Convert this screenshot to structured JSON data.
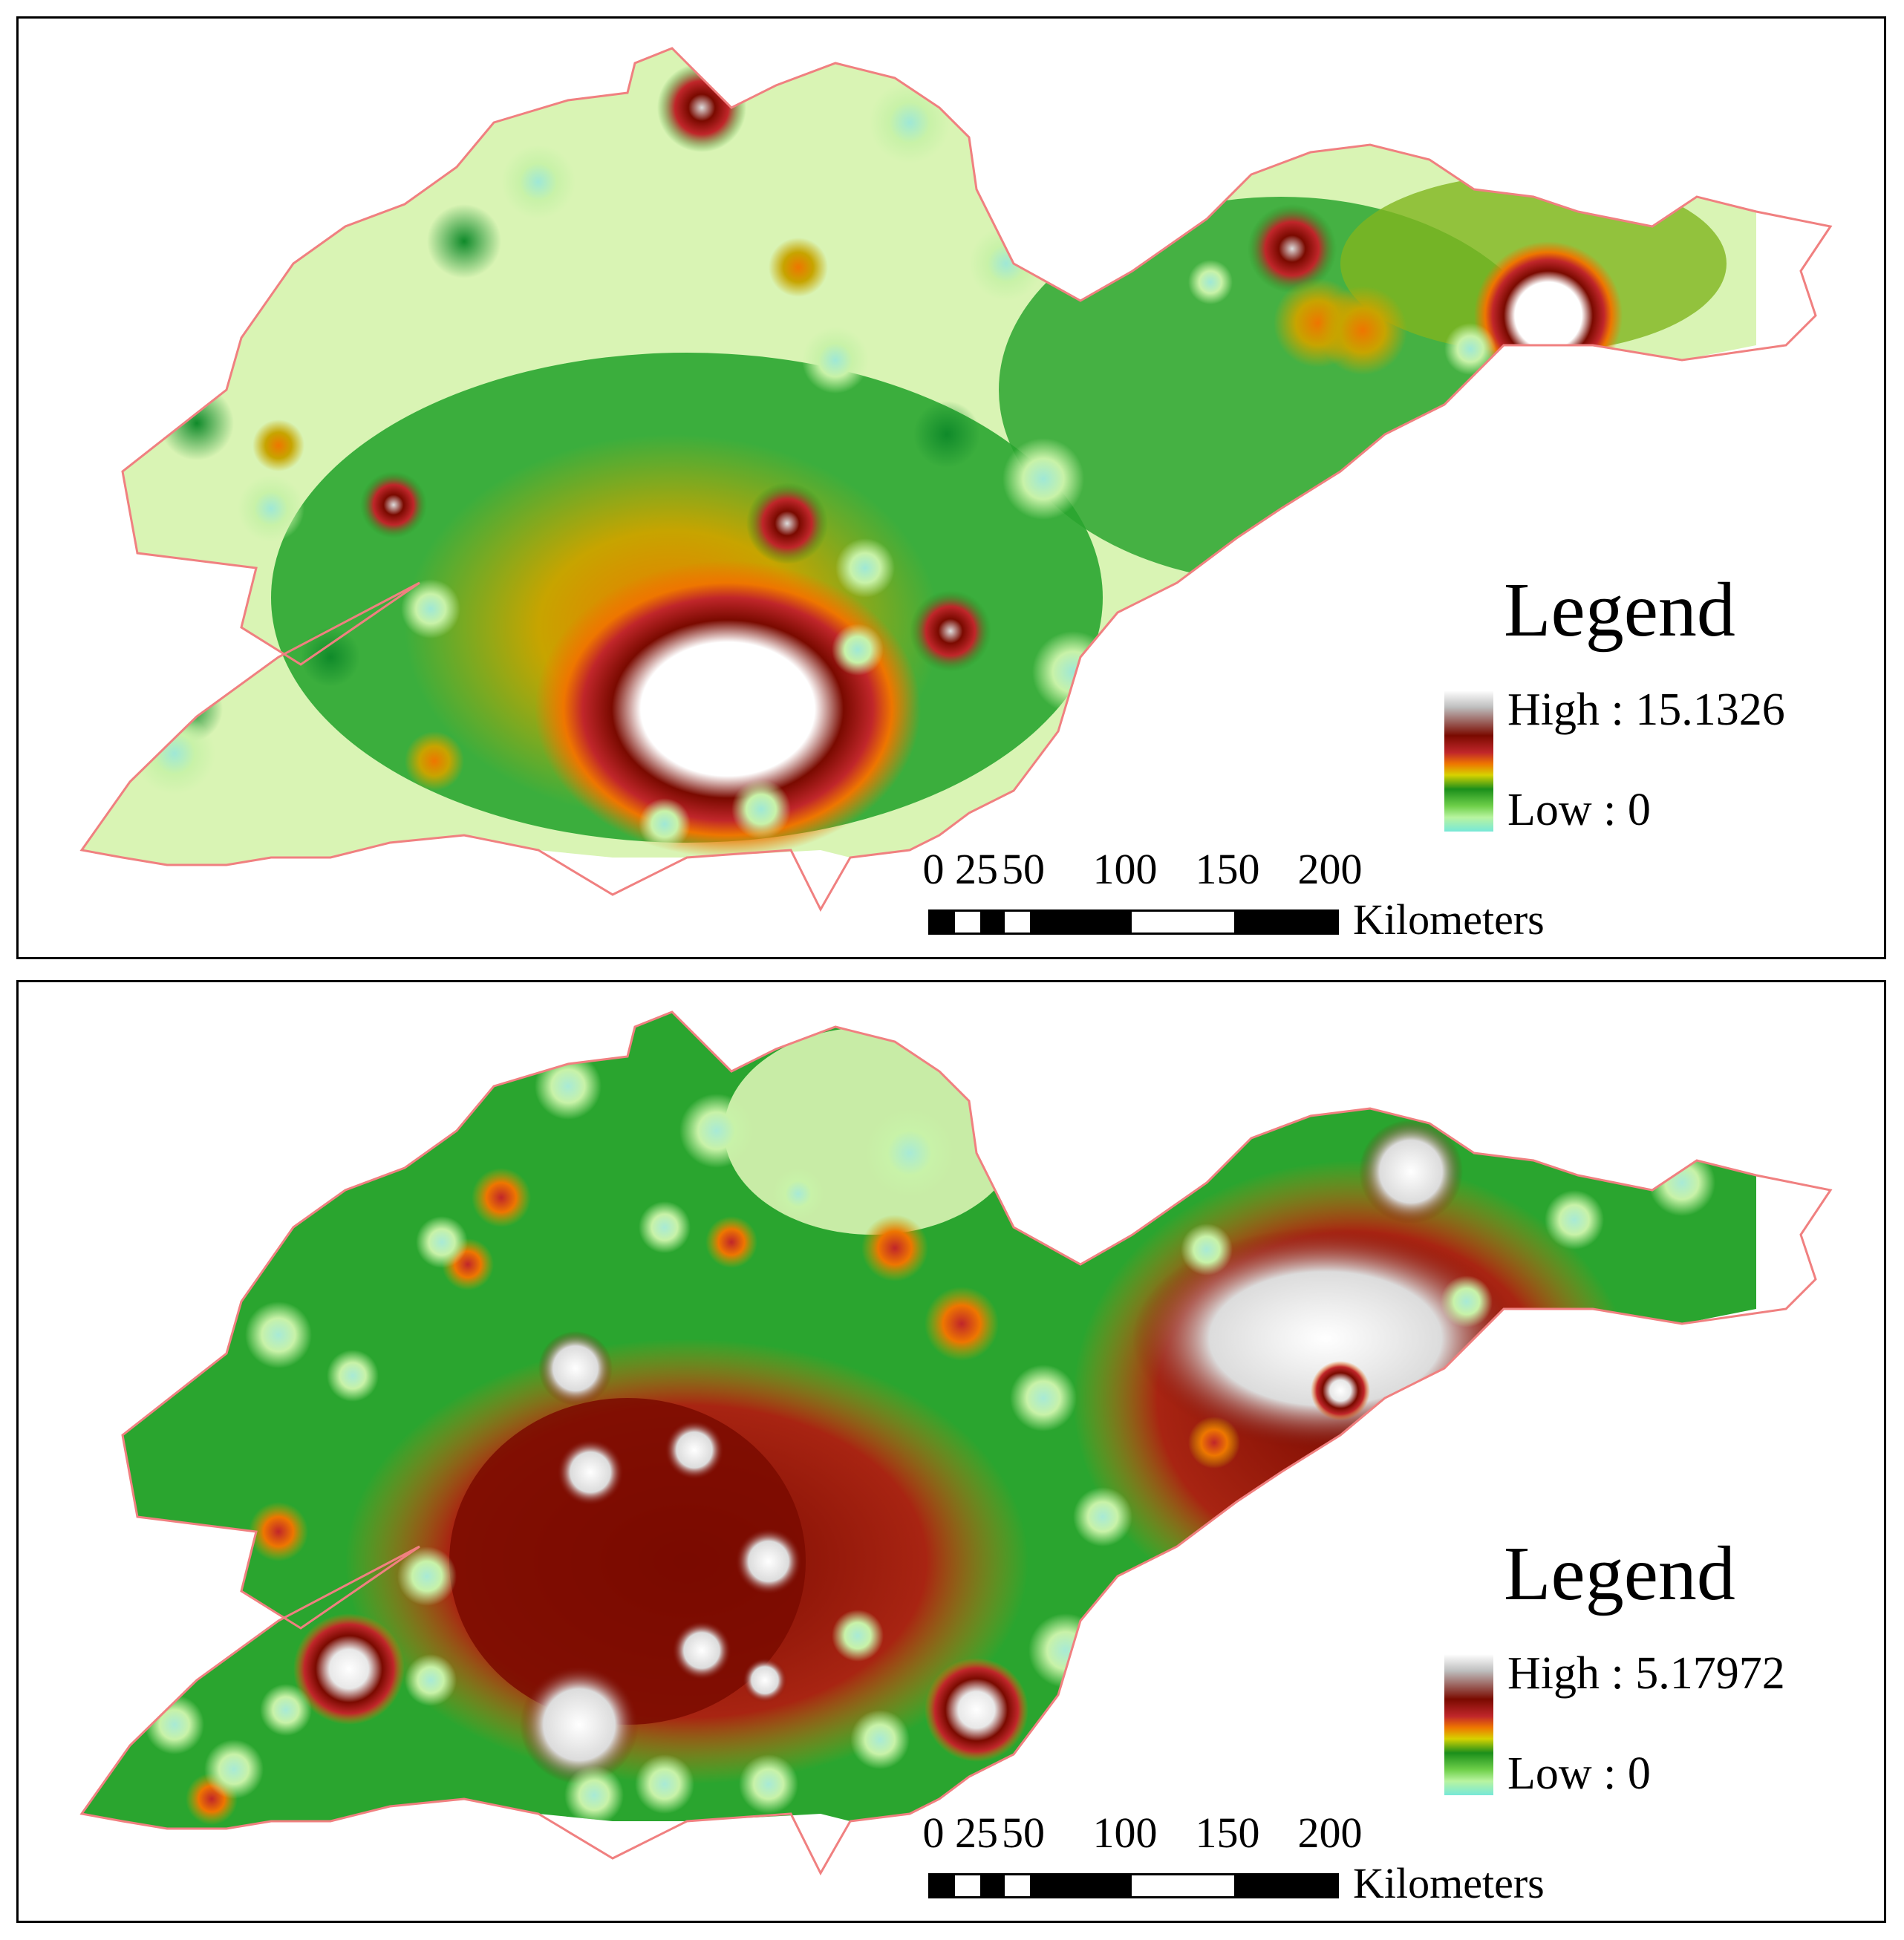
{
  "maps": [
    {
      "legend_title": "Legend",
      "legend_high": "High : 15.1326",
      "legend_low": "Low : 0",
      "scale_ticks": [
        "0",
        "25",
        "50",
        "100",
        "150",
        "200"
      ],
      "scale_unit": "Kilometers"
    },
    {
      "legend_title": "Legend",
      "legend_high": "High : 5.17972",
      "legend_low": "Low : 0",
      "scale_ticks": [
        "0",
        "25",
        "50",
        "100",
        "150",
        "200"
      ],
      "scale_unit": "Kilometers"
    }
  ],
  "colors": {
    "background": "#ffffff",
    "boundary_outline": "#f08080",
    "ramp_high": "#ffffff",
    "ramp_mid_high": "#7a0a00",
    "ramp_mid": "#ee7600",
    "ramp_mid_low": "#1b8f1b",
    "ramp_low": "#77e8d8",
    "scale_black": "#000000",
    "scale_white": "#ffffff"
  }
}
